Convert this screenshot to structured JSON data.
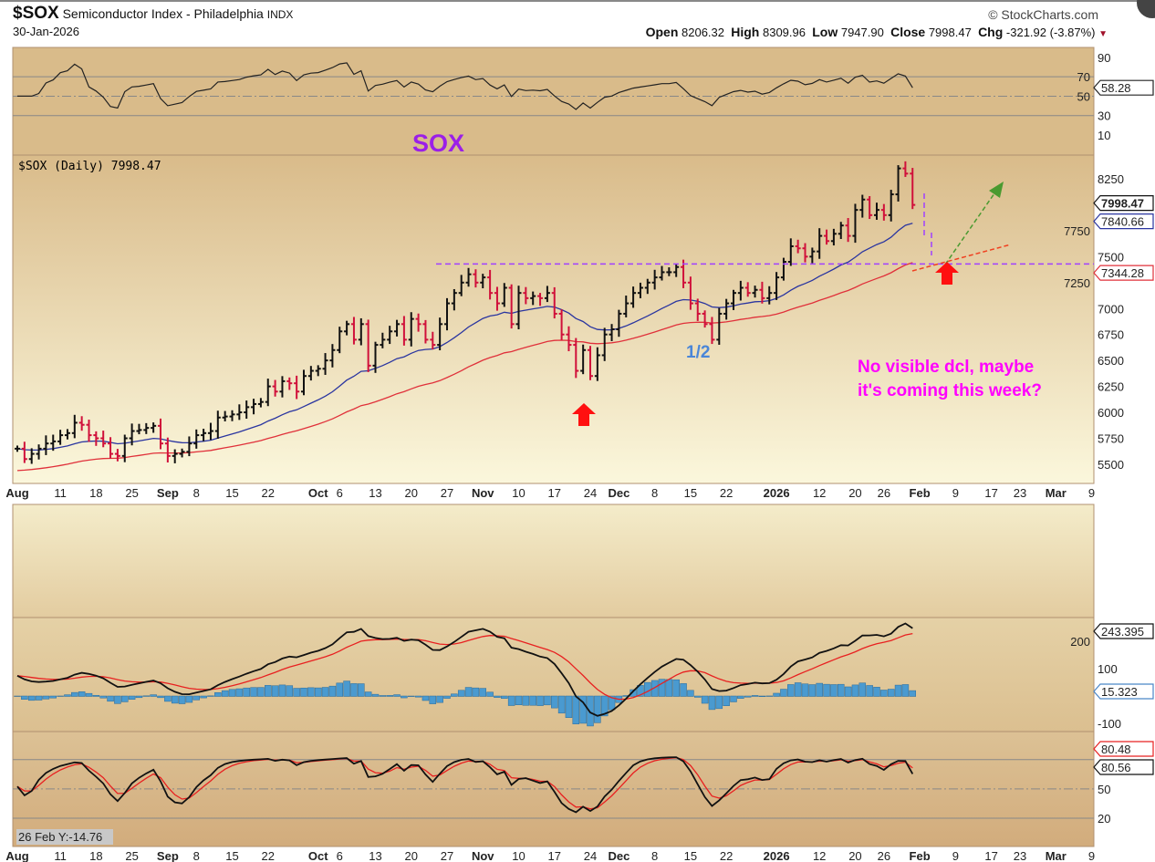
{
  "header": {
    "symbol": "$SOX",
    "name": "Semiconductor Index - Philadelphia",
    "exchange": "INDX",
    "date": "30-Jan-2026",
    "brand": "© StockCharts.com",
    "open_label": "Open",
    "open": "8206.32",
    "high_label": "High",
    "high": "8309.96",
    "low_label": "Low",
    "low": "7947.90",
    "close_label": "Close",
    "close": "7998.47",
    "chg_label": "Chg",
    "chg": "-321.92 (-3.87%)"
  },
  "chart_data": {
    "type": "line",
    "title": "SOX",
    "legend": "$SOX (Daily) 7998.47",
    "closes": [
      5650,
      5550,
      5600,
      5650,
      5700,
      5720,
      5780,
      5800,
      5900,
      5880,
      5780,
      5750,
      5700,
      5600,
      5580,
      5750,
      5820,
      5830,
      5850,
      5870,
      5700,
      5580,
      5600,
      5620,
      5700,
      5780,
      5800,
      5820,
      5950,
      5960,
      5980,
      6000,
      6050,
      6080,
      6100,
      6250,
      6200,
      6300,
      6280,
      6200,
      6350,
      6400,
      6420,
      6500,
      6600,
      6780,
      6850,
      6700,
      6850,
      6450,
      6650,
      6700,
      6780,
      6850,
      6700,
      6900,
      6850,
      6700,
      6650,
      6850,
      7050,
      7150,
      7250,
      7330,
      7250,
      7300,
      7150,
      7050,
      7200,
      6850,
      7150,
      7100,
      7120,
      7100,
      7150,
      6950,
      6750,
      6650,
      6400,
      6600,
      6350,
      6550,
      6750,
      6800,
      6950,
      7050,
      7150,
      7200,
      7250,
      7300,
      7350,
      7350,
      7400,
      7250,
      7050,
      6950,
      6850,
      6700,
      6950,
      7050,
      7150,
      7200,
      7150,
      7180,
      7100,
      7150,
      7300,
      7450,
      7600,
      7580,
      7500,
      7550,
      7700,
      7650,
      7720,
      7800,
      7700,
      7950,
      8050,
      7900,
      7950,
      7900,
      8100,
      8350,
      8300,
      7998.47
    ],
    "price_axis": {
      "ylim": [
        5350,
        8450
      ],
      "ticks": [
        5500,
        5750,
        6000,
        6250,
        6500,
        6750,
        7000,
        7250,
        7500,
        7750,
        8250
      ]
    },
    "ma_short": {
      "label": "7840.66",
      "color": "#2a35a0",
      "seed": 5650
    },
    "ma_long": {
      "label": "7344.28",
      "color": "#e0303a",
      "seed": 5430
    },
    "last_label": "7998.47",
    "rsi": {
      "ticks": [
        90,
        70,
        50,
        30,
        10
      ],
      "label": "58.28"
    },
    "macd": {
      "ticks": [
        "200",
        "100",
        "-100"
      ],
      "label": "243.395",
      "hist_label": "15.323"
    },
    "stoch": {
      "ticks": [
        "50",
        "20"
      ],
      "label": "80.56",
      "label2": "80.48"
    },
    "x_ticks": [
      {
        "i": 0,
        "t": "Aug",
        "b": true
      },
      {
        "i": 6,
        "t": "11"
      },
      {
        "i": 11,
        "t": "18"
      },
      {
        "i": 16,
        "t": "25"
      },
      {
        "i": 21,
        "t": "Sep",
        "b": true
      },
      {
        "i": 25,
        "t": "8"
      },
      {
        "i": 30,
        "t": "15"
      },
      {
        "i": 35,
        "t": "22"
      },
      {
        "i": 42,
        "t": "Oct",
        "b": true
      },
      {
        "i": 45,
        "t": "6"
      },
      {
        "i": 50,
        "t": "13"
      },
      {
        "i": 55,
        "t": "20"
      },
      {
        "i": 60,
        "t": "27"
      },
      {
        "i": 65,
        "t": "Nov",
        "b": true
      },
      {
        "i": 70,
        "t": "10"
      },
      {
        "i": 75,
        "t": "17"
      },
      {
        "i": 80,
        "t": "24"
      },
      {
        "i": 84,
        "t": "Dec",
        "b": true
      },
      {
        "i": 89,
        "t": "8"
      },
      {
        "i": 94,
        "t": "15"
      },
      {
        "i": 99,
        "t": "22"
      },
      {
        "i": 106,
        "t": "2026",
        "b": true
      },
      {
        "i": 112,
        "t": "12"
      },
      {
        "i": 117,
        "t": "20"
      },
      {
        "i": 121,
        "t": "26"
      },
      {
        "i": 126,
        "t": "Feb",
        "b": true
      },
      {
        "i": 131,
        "t": "9"
      },
      {
        "i": 136,
        "t": "17"
      },
      {
        "i": 140,
        "t": "23"
      },
      {
        "i": 145,
        "t": "Mar",
        "b": true
      },
      {
        "i": 150,
        "t": "9"
      }
    ],
    "resistance_level": 7430,
    "annotations": {
      "half": "1/2",
      "note1": "No visible dcl, maybe",
      "note2": "it's coming this week?"
    },
    "tooltip": "26 Feb Y:-14.76"
  },
  "colors": {
    "up": "#111111",
    "down": "#d0103a",
    "note": "#ff00ff",
    "title": "#9b1fe8",
    "half": "#4a86d8",
    "arrow": "#ff1010",
    "green": "#4a9a30",
    "purple": "#a040ff"
  }
}
